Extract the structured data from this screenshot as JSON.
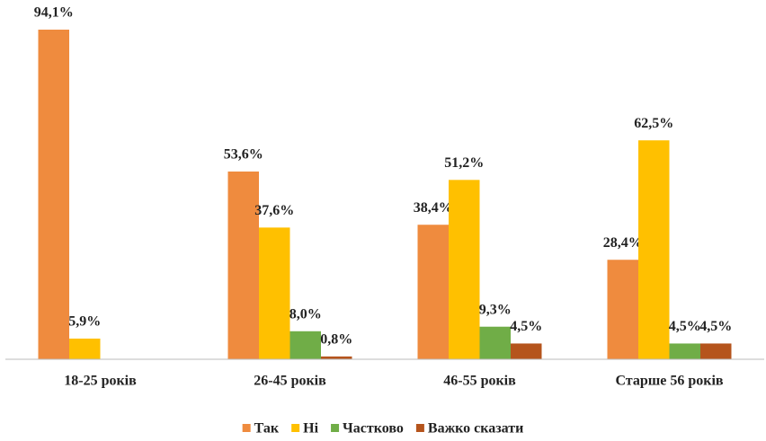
{
  "chart_data": {
    "type": "bar",
    "categories": [
      "18-25 років",
      "26-45 років",
      "46-55 років",
      "Старше 56 років"
    ],
    "series": [
      {
        "name": "Так",
        "color": "#ef8b3e",
        "values": [
          94.1,
          53.6,
          38.4,
          28.4
        ],
        "value_labels": [
          "94,1%",
          "53,6%",
          "38,4%",
          "28,4%"
        ]
      },
      {
        "name": "Ні",
        "color": "#ffc000",
        "values": [
          5.9,
          37.6,
          51.2,
          62.5
        ],
        "value_labels": [
          "5,9%",
          "37,6%",
          "51,2%",
          "62,5%"
        ]
      },
      {
        "name": "Частково",
        "color": "#70ad47",
        "values": [
          null,
          8.0,
          9.3,
          4.5
        ],
        "value_labels": [
          null,
          "8,0%",
          "9,3%",
          "4,5%"
        ]
      },
      {
        "name": "Важко сказати",
        "color": "#b5541c",
        "values": [
          null,
          0.8,
          4.5,
          4.5
        ],
        "value_labels": [
          null,
          "0,8%",
          "4,5%",
          "4,5%"
        ]
      }
    ],
    "ylim": [
      0,
      100
    ],
    "legend": "bottom"
  }
}
